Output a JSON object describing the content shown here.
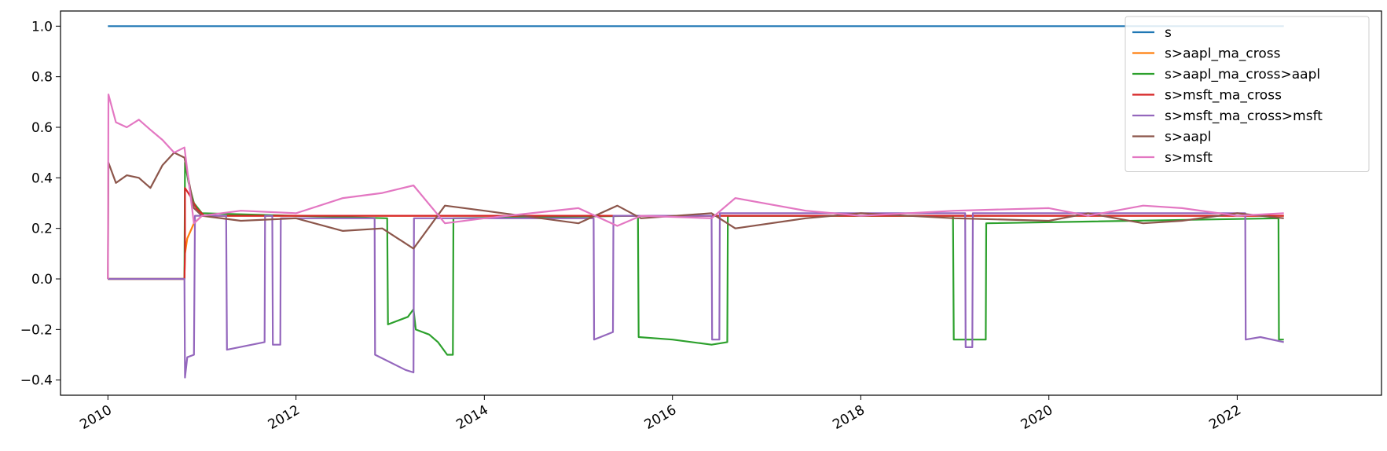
{
  "chart_data": {
    "type": "line",
    "title": "",
    "xlabel": "",
    "ylabel": "",
    "xlim": [
      "2009-07-01",
      "2023-07-15"
    ],
    "ylim": [
      -0.46,
      1.06
    ],
    "x_ticks": [
      {
        "date": "2010-01-01",
        "label": "2010"
      },
      {
        "date": "2012-01-01",
        "label": "2012"
      },
      {
        "date": "2014-01-01",
        "label": "2014"
      },
      {
        "date": "2016-01-01",
        "label": "2016"
      },
      {
        "date": "2018-01-01",
        "label": "2018"
      },
      {
        "date": "2020-01-01",
        "label": "2020"
      },
      {
        "date": "2022-01-01",
        "label": "2022"
      }
    ],
    "y_ticks": [
      {
        "value": -0.4,
        "label": "−0.4"
      },
      {
        "value": -0.2,
        "label": "−0.2"
      },
      {
        "value": 0.0,
        "label": "0.0"
      },
      {
        "value": 0.2,
        "label": "0.2"
      },
      {
        "value": 0.4,
        "label": "0.4"
      },
      {
        "value": 0.6,
        "label": "0.6"
      },
      {
        "value": 0.8,
        "label": "0.8"
      },
      {
        "value": 1.0,
        "label": "1.0"
      }
    ],
    "grid": false,
    "legend_position": "top-right",
    "series": [
      {
        "name": "s",
        "color": "#1f77b4",
        "points": [
          [
            "2010-01-01",
            1.0
          ],
          [
            "2022-07-01",
            1.0
          ]
        ]
      },
      {
        "name": "s>aapl_ma_cross",
        "color": "#ff7f0e",
        "points": [
          [
            "2010-01-01",
            0.0
          ],
          [
            "2010-10-25",
            0.0
          ],
          [
            "2010-10-27",
            0.1
          ],
          [
            "2010-11-05",
            0.16
          ],
          [
            "2010-12-01",
            0.22
          ],
          [
            "2011-01-01",
            0.25
          ],
          [
            "2022-07-01",
            0.25
          ]
        ]
      },
      {
        "name": "s>aapl_ma_cross>aapl",
        "color": "#2ca02c",
        "points": [
          [
            "2010-01-01",
            0.0
          ],
          [
            "2010-10-25",
            0.0
          ],
          [
            "2010-10-27",
            0.46
          ],
          [
            "2010-11-10",
            0.38
          ],
          [
            "2010-12-01",
            0.3
          ],
          [
            "2011-01-01",
            0.26
          ],
          [
            "2012-12-20",
            0.24
          ],
          [
            "2012-12-23",
            -0.18
          ],
          [
            "2013-03-10",
            -0.15
          ],
          [
            "2013-04-01",
            -0.12
          ],
          [
            "2013-04-10",
            -0.2
          ],
          [
            "2013-06-01",
            -0.22
          ],
          [
            "2013-07-05",
            -0.25
          ],
          [
            "2013-08-10",
            -0.3
          ],
          [
            "2013-09-01",
            -0.3
          ],
          [
            "2013-09-03",
            0.24
          ],
          [
            "2015-08-20",
            0.25
          ],
          [
            "2015-08-23",
            -0.23
          ],
          [
            "2016-01-01",
            -0.24
          ],
          [
            "2016-06-01",
            -0.26
          ],
          [
            "2016-08-01",
            -0.25
          ],
          [
            "2016-08-03",
            0.25
          ],
          [
            "2018-12-25",
            0.25
          ],
          [
            "2018-12-28",
            -0.24
          ],
          [
            "2019-05-01",
            -0.24
          ],
          [
            "2019-05-03",
            0.22
          ],
          [
            "2022-06-10",
            0.24
          ],
          [
            "2022-06-12",
            -0.24
          ],
          [
            "2022-07-01",
            -0.24
          ]
        ]
      },
      {
        "name": "s>msft_ma_cross",
        "color": "#d62728",
        "points": [
          [
            "2010-01-01",
            0.0
          ],
          [
            "2010-10-25",
            0.0
          ],
          [
            "2010-10-27",
            0.1
          ],
          [
            "2010-10-27",
            0.36
          ],
          [
            "2010-11-15",
            0.33
          ],
          [
            "2010-12-10",
            0.28
          ],
          [
            "2011-01-10",
            0.25
          ],
          [
            "2022-07-01",
            0.25
          ]
        ]
      },
      {
        "name": "s>msft_ma_cross>msft",
        "color": "#9467bd",
        "points": [
          [
            "2010-01-01",
            0.0
          ],
          [
            "2010-10-25",
            0.0
          ],
          [
            "2010-10-27",
            -0.39
          ],
          [
            "2010-11-05",
            -0.31
          ],
          [
            "2010-12-01",
            -0.3
          ],
          [
            "2010-12-05",
            0.25
          ],
          [
            "2011-04-05",
            0.25
          ],
          [
            "2011-04-08",
            -0.28
          ],
          [
            "2011-09-01",
            -0.25
          ],
          [
            "2011-09-03",
            0.25
          ],
          [
            "2011-10-01",
            0.25
          ],
          [
            "2011-10-03",
            -0.26
          ],
          [
            "2011-11-01",
            -0.26
          ],
          [
            "2011-11-03",
            0.24
          ],
          [
            "2012-11-01",
            0.24
          ],
          [
            "2012-11-03",
            -0.3
          ],
          [
            "2013-03-01",
            -0.36
          ],
          [
            "2013-04-01",
            -0.37
          ],
          [
            "2013-04-03",
            0.24
          ],
          [
            "2015-03-01",
            0.24
          ],
          [
            "2015-03-03",
            -0.24
          ],
          [
            "2015-05-15",
            -0.21
          ],
          [
            "2015-05-17",
            0.25
          ],
          [
            "2016-06-01",
            0.25
          ],
          [
            "2016-06-03",
            -0.24
          ],
          [
            "2016-07-01",
            -0.24
          ],
          [
            "2016-07-03",
            0.26
          ],
          [
            "2019-02-10",
            0.26
          ],
          [
            "2019-02-12",
            -0.27
          ],
          [
            "2019-03-10",
            -0.27
          ],
          [
            "2019-03-12",
            0.26
          ],
          [
            "2022-02-01",
            0.26
          ],
          [
            "2022-02-03",
            -0.24
          ],
          [
            "2022-04-01",
            -0.23
          ],
          [
            "2022-07-01",
            -0.25
          ]
        ]
      },
      {
        "name": "s>aapl",
        "color": "#8c564b",
        "points": [
          [
            "2010-01-01",
            0.0
          ],
          [
            "2010-01-03",
            0.46
          ],
          [
            "2010-02-01",
            0.38
          ],
          [
            "2010-03-15",
            0.41
          ],
          [
            "2010-05-01",
            0.4
          ],
          [
            "2010-06-15",
            0.36
          ],
          [
            "2010-08-01",
            0.45
          ],
          [
            "2010-09-15",
            0.5
          ],
          [
            "2010-10-25",
            0.48
          ],
          [
            "2010-12-01",
            0.28
          ],
          [
            "2011-01-01",
            0.25
          ],
          [
            "2011-06-01",
            0.23
          ],
          [
            "2012-01-01",
            0.24
          ],
          [
            "2012-07-01",
            0.19
          ],
          [
            "2012-12-01",
            0.2
          ],
          [
            "2013-04-01",
            0.12
          ],
          [
            "2013-08-01",
            0.29
          ],
          [
            "2014-01-01",
            0.27
          ],
          [
            "2015-01-01",
            0.22
          ],
          [
            "2015-06-01",
            0.29
          ],
          [
            "2015-09-01",
            0.24
          ],
          [
            "2016-06-01",
            0.26
          ],
          [
            "2016-09-01",
            0.2
          ],
          [
            "2017-06-01",
            0.24
          ],
          [
            "2018-01-01",
            0.26
          ],
          [
            "2019-01-01",
            0.24
          ],
          [
            "2020-01-01",
            0.23
          ],
          [
            "2020-06-01",
            0.26
          ],
          [
            "2021-01-01",
            0.22
          ],
          [
            "2021-06-01",
            0.23
          ],
          [
            "2022-01-01",
            0.26
          ],
          [
            "2022-07-01",
            0.24
          ]
        ]
      },
      {
        "name": "s>msft",
        "color": "#e377c2",
        "points": [
          [
            "2010-01-01",
            0.0
          ],
          [
            "2010-01-03",
            0.73
          ],
          [
            "2010-02-01",
            0.62
          ],
          [
            "2010-03-15",
            0.6
          ],
          [
            "2010-05-01",
            0.63
          ],
          [
            "2010-06-15",
            0.59
          ],
          [
            "2010-08-01",
            0.55
          ],
          [
            "2010-09-15",
            0.5
          ],
          [
            "2010-10-25",
            0.52
          ],
          [
            "2010-12-01",
            0.22
          ],
          [
            "2011-01-01",
            0.25
          ],
          [
            "2011-06-01",
            0.27
          ],
          [
            "2012-01-01",
            0.26
          ],
          [
            "2012-07-01",
            0.32
          ],
          [
            "2012-12-01",
            0.34
          ],
          [
            "2013-04-01",
            0.37
          ],
          [
            "2013-08-01",
            0.22
          ],
          [
            "2014-01-01",
            0.24
          ],
          [
            "2015-01-01",
            0.28
          ],
          [
            "2015-06-01",
            0.21
          ],
          [
            "2015-09-01",
            0.25
          ],
          [
            "2016-06-01",
            0.24
          ],
          [
            "2016-09-01",
            0.32
          ],
          [
            "2017-06-01",
            0.27
          ],
          [
            "2018-01-01",
            0.25
          ],
          [
            "2019-01-01",
            0.27
          ],
          [
            "2020-01-01",
            0.28
          ],
          [
            "2020-06-01",
            0.25
          ],
          [
            "2021-01-01",
            0.29
          ],
          [
            "2021-06-01",
            0.28
          ],
          [
            "2022-01-01",
            0.25
          ],
          [
            "2022-07-01",
            0.26
          ]
        ]
      }
    ]
  }
}
